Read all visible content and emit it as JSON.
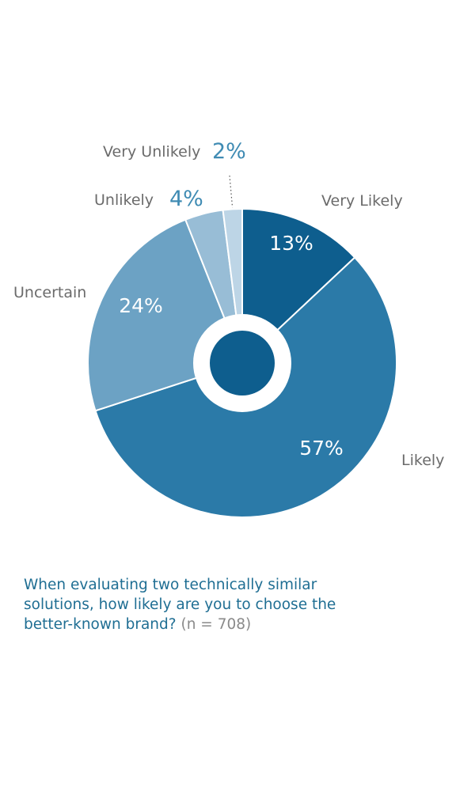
{
  "chart_data": {
    "type": "pie",
    "series": [
      {
        "label": "Very Likely",
        "value": 13,
        "value_label": "13%",
        "color": "#0e5e8e"
      },
      {
        "label": "Likely",
        "value": 57,
        "value_label": "57%",
        "color": "#2b7aa8"
      },
      {
        "label": "Uncertain",
        "value": 24,
        "value_label": "24%",
        "color": "#6ca2c4"
      },
      {
        "label": "Unlikely",
        "value": 4,
        "value_label": "4%",
        "color": "#98bdd6"
      },
      {
        "label": "Very Unlikely",
        "value": 2,
        "value_label": "2%",
        "color": "#bdd5e6"
      }
    ],
    "center_dot_color": "#0e5e8e",
    "label_color": "#6b6b6b",
    "outside_value_color": "#3f8bb3",
    "inside_value_color": "#ffffff"
  },
  "caption": {
    "question": "When evaluating two technically similar solutions, how likely are you to choose the better-known brand?",
    "sample": "(n = 708)"
  }
}
